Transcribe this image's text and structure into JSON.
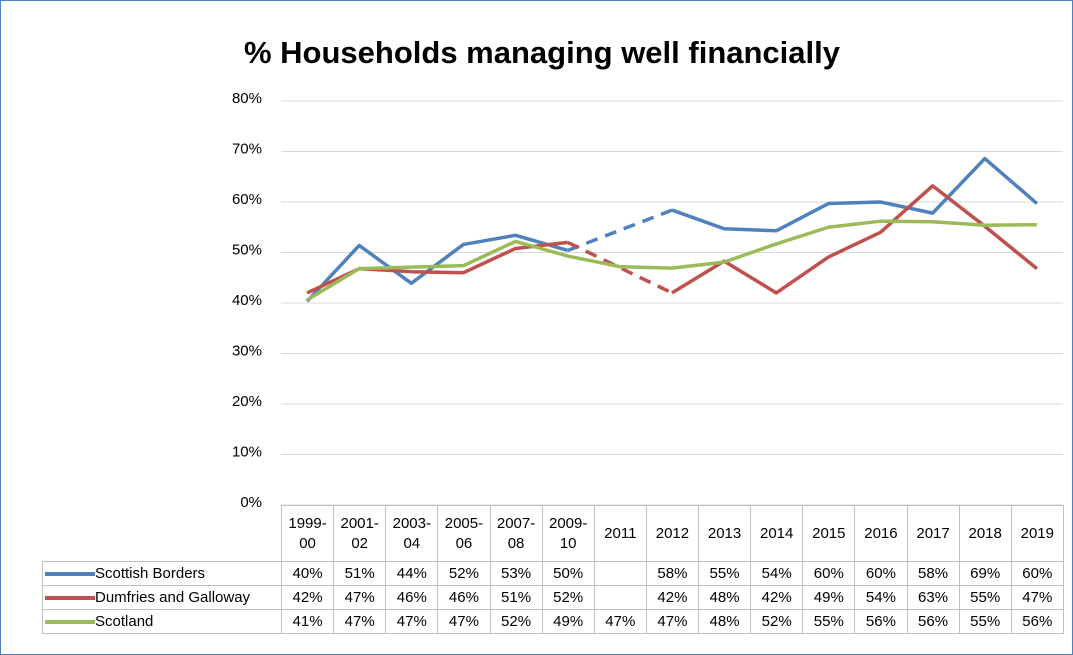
{
  "chart_data": {
    "type": "line",
    "title": "% Households managing well financially",
    "categories": [
      "1999-00",
      "2001-02",
      "2003-04",
      "2005-06",
      "2007-08",
      "2009-10",
      "2011",
      "2012",
      "2013",
      "2014",
      "2015",
      "2016",
      "2017",
      "2018",
      "2019"
    ],
    "series": [
      {
        "name": "Scottish Borders",
        "color": "#4f81bd",
        "values": [
          40.3,
          51.4,
          43.9,
          51.6,
          53.4,
          50.4,
          null,
          58.4,
          54.7,
          54.3,
          59.7,
          60.0,
          57.8,
          68.6,
          59.7
        ],
        "value_labels": [
          "40%",
          "51%",
          "44%",
          "52%",
          "53%",
          "50%",
          null,
          "58%",
          "55%",
          "54%",
          "60%",
          "60%",
          "58%",
          "69%",
          "60%"
        ]
      },
      {
        "name": "Dumfries and Galloway",
        "color": "#c0504d",
        "values": [
          42.0,
          46.8,
          46.2,
          46.0,
          50.8,
          52.0,
          null,
          42.0,
          48.3,
          42.0,
          49.1,
          54.0,
          63.2,
          55.2,
          46.8
        ],
        "value_labels": [
          "42%",
          "47%",
          "46%",
          "46%",
          "51%",
          "52%",
          null,
          "42%",
          "48%",
          "42%",
          "49%",
          "54%",
          "63%",
          "55%",
          "47%"
        ]
      },
      {
        "name": "Scotland",
        "color": "#9bbb59",
        "values": [
          40.6,
          46.8,
          47.1,
          47.4,
          52.2,
          49.3,
          47.2,
          46.9,
          48.1,
          51.7,
          55.0,
          56.2,
          56.1,
          55.4,
          55.5
        ],
        "value_labels": [
          "41%",
          "47%",
          "47%",
          "47%",
          "52%",
          "49%",
          "47%",
          "47%",
          "48%",
          "52%",
          "55%",
          "56%",
          "56%",
          "55%",
          "56%"
        ]
      }
    ],
    "ylim": [
      0,
      80
    ],
    "yticks": [
      {
        "value": 0,
        "label": "0%"
      },
      {
        "value": 10,
        "label": "10%"
      },
      {
        "value": 20,
        "label": "20%"
      },
      {
        "value": 30,
        "label": "30%"
      },
      {
        "value": 40,
        "label": "40%"
      },
      {
        "value": 50,
        "label": "50%"
      },
      {
        "value": 60,
        "label": "60%"
      },
      {
        "value": 70,
        "label": "70%"
      },
      {
        "value": 80,
        "label": "80%"
      }
    ],
    "grid": true
  }
}
